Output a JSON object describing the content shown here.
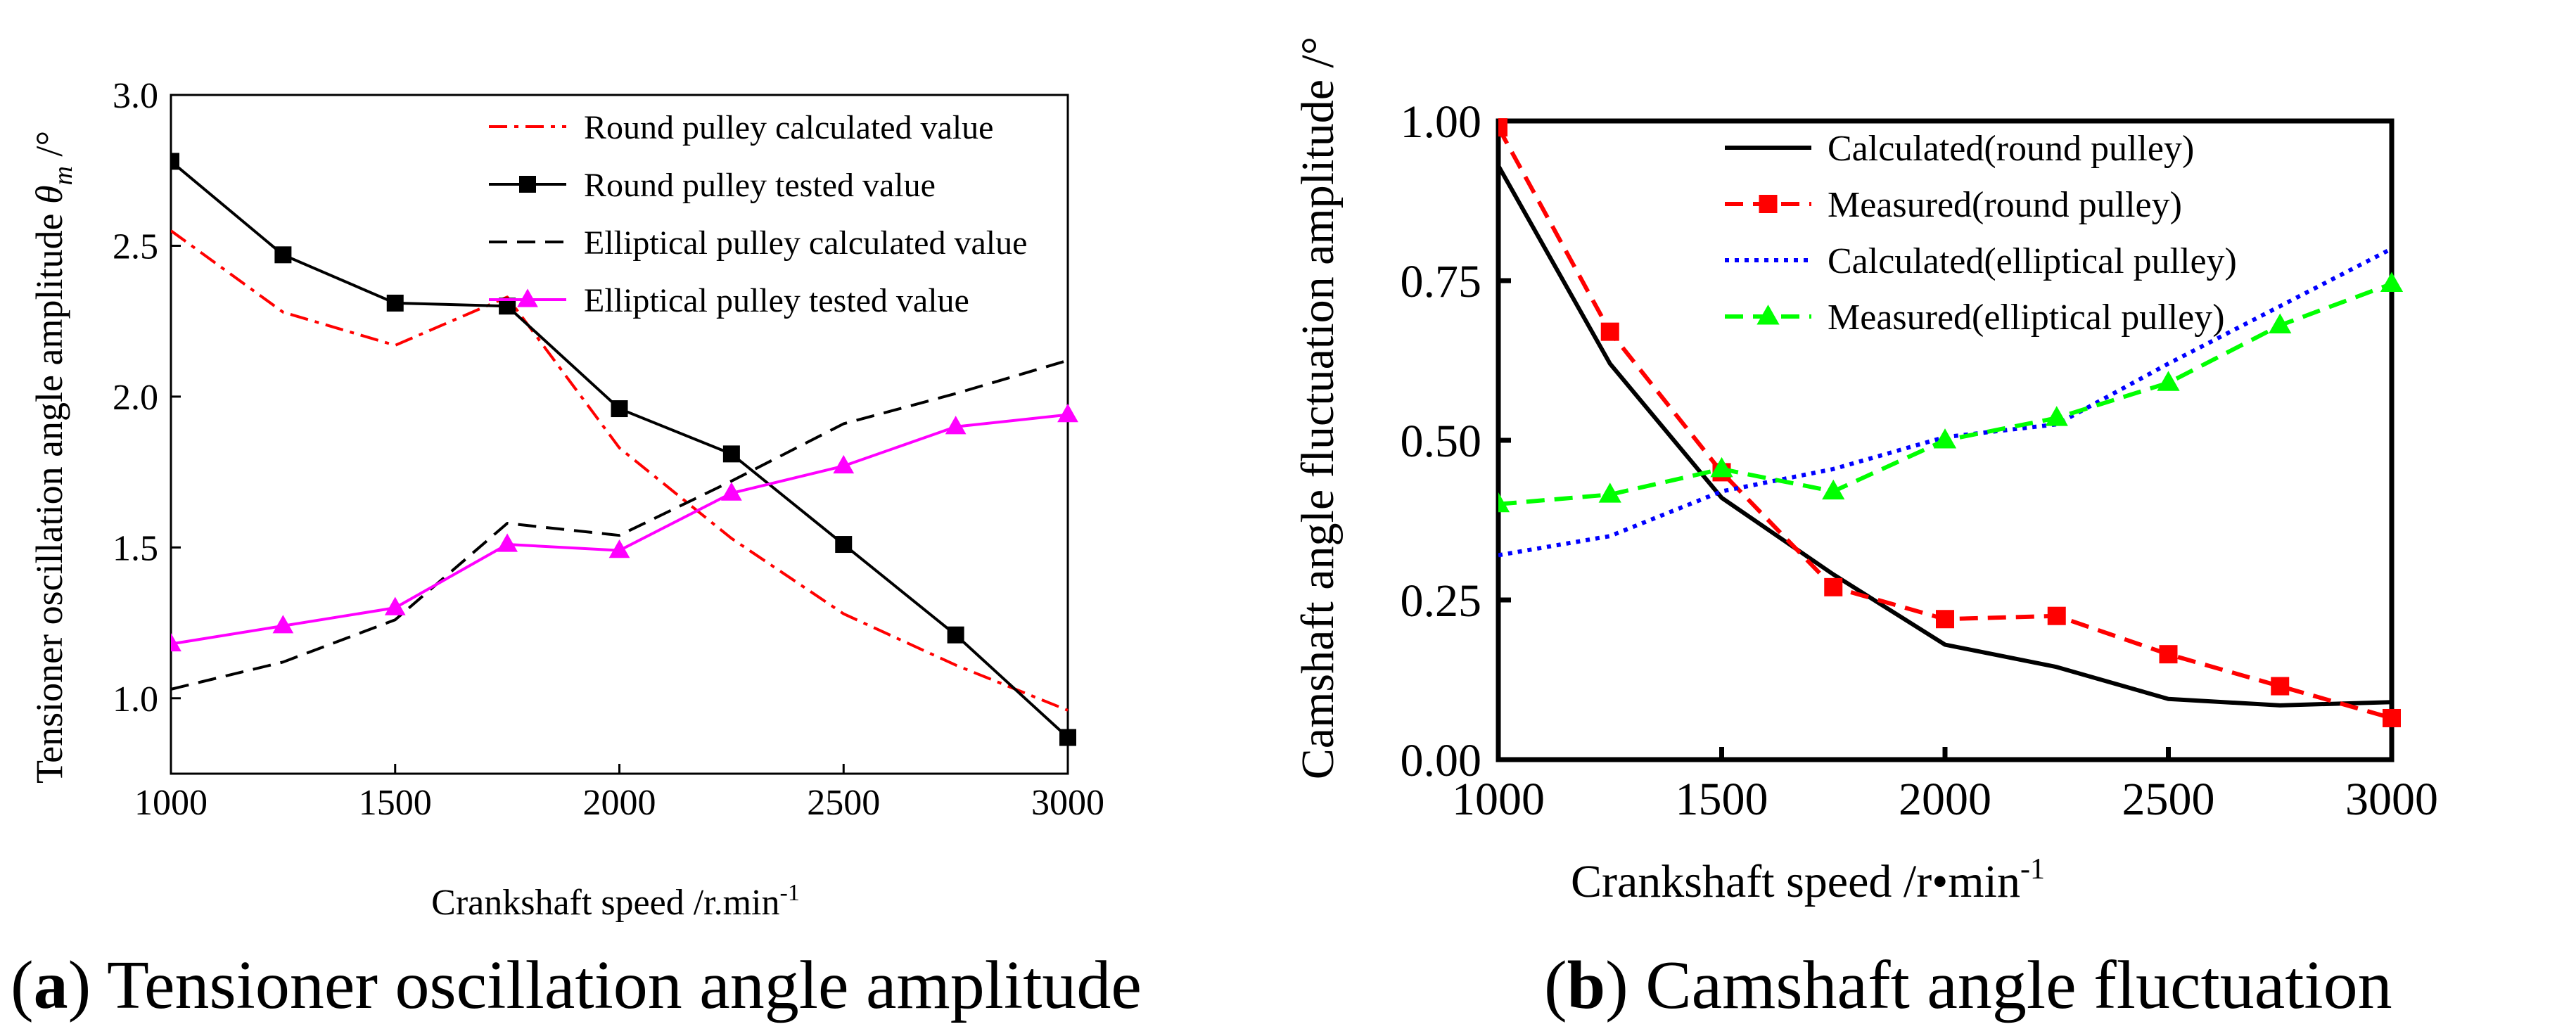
{
  "colors": {
    "red": "#ff0000",
    "black": "#000000",
    "magenta": "#ff00ff",
    "blue": "#0000ff",
    "green": "#00ff00"
  },
  "chart_data": [
    {
      "type": "line",
      "caption": {
        "letter": "a",
        "open": "(",
        "close": ")",
        "text": " Tensioner oscillation angle amplitude"
      },
      "xlabel": "Crankshaft speed /r.min",
      "xlabel_sup": "-1",
      "ylabel": "Tensioner oscillation angle amplitude",
      "ylabel_symbol": "θ",
      "ylabel_sub": "m",
      "ylabel_unit": "/°",
      "xlim": [
        1000,
        3000
      ],
      "ylim": [
        0.75,
        3.0
      ],
      "x_ticks": [
        1000,
        1500,
        2000,
        2500,
        3000
      ],
      "x_tick_labels": [
        "1000",
        "1500",
        "2000",
        "2500",
        "3000"
      ],
      "y_ticks": [
        1.0,
        1.5,
        2.0,
        2.5,
        3.0
      ],
      "y_tick_labels": [
        "1.0",
        "1.5",
        "2.0",
        "2.5",
        "3.0"
      ],
      "legend_position": "top-right",
      "series": [
        {
          "name": "Round pulley calculated value",
          "color": "#ff0000",
          "style": "dashdot",
          "marker": "none",
          "x": [
            1000,
            1250,
            1500,
            1750,
            2000,
            2250,
            2500,
            2750,
            3000
          ],
          "y": [
            2.55,
            2.28,
            2.17,
            2.33,
            1.83,
            1.53,
            1.28,
            1.11,
            0.96
          ]
        },
        {
          "name": "Round pulley tested value",
          "color": "#000000",
          "style": "solid",
          "marker": "square",
          "x": [
            1000,
            1250,
            1500,
            1750,
            2000,
            2250,
            2500,
            2750,
            3000
          ],
          "y": [
            2.78,
            2.47,
            2.31,
            2.3,
            1.96,
            1.81,
            1.51,
            1.21,
            0.87
          ]
        },
        {
          "name": "Elliptical pulley calculated value",
          "color": "#000000",
          "style": "dashed",
          "marker": "none",
          "x": [
            1000,
            1250,
            1500,
            1750,
            2000,
            2250,
            2500,
            2750,
            3000
          ],
          "y": [
            1.03,
            1.12,
            1.26,
            1.58,
            1.54,
            1.72,
            1.91,
            2.01,
            2.12
          ]
        },
        {
          "name": "Elliptical pulley tested value",
          "color": "#ff00ff",
          "style": "solid",
          "marker": "triangle",
          "x": [
            1000,
            1250,
            1500,
            1750,
            2000,
            2250,
            2500,
            2750,
            3000
          ],
          "y": [
            1.18,
            1.24,
            1.3,
            1.51,
            1.49,
            1.68,
            1.77,
            1.9,
            1.94
          ]
        }
      ]
    },
    {
      "type": "line",
      "caption": {
        "letter": "b",
        "open": "(",
        "close": ")",
        "text": " Camshaft angle fluctuation"
      },
      "xlabel": "Crankshaft speed /r•min",
      "xlabel_sup": "-1",
      "ylabel": "Camshaft angle fluctuation amplitude /°",
      "xlim": [
        1000,
        3000
      ],
      "ylim": [
        0,
        1.0
      ],
      "x_ticks": [
        1000,
        1500,
        2000,
        2500,
        3000
      ],
      "x_tick_labels": [
        "1000",
        "1500",
        "2000",
        "2500",
        "3000"
      ],
      "y_ticks": [
        0,
        0.25,
        0.5,
        0.75,
        1.0
      ],
      "y_tick_labels": [
        "0.00",
        "0.25",
        "0.50",
        "0.75",
        "1.00"
      ],
      "legend_position": "top-right",
      "series": [
        {
          "name": "Calculated(round pulley)",
          "color": "#000000",
          "style": "solid",
          "marker": "none",
          "x": [
            1000,
            1250,
            1500,
            1750,
            2000,
            2250,
            2500,
            2750,
            3000
          ],
          "y": [
            0.93,
            0.62,
            0.41,
            0.29,
            0.18,
            0.145,
            0.095,
            0.085,
            0.09
          ]
        },
        {
          "name": "Measured(round pulley)",
          "color": "#ff0000",
          "style": "dashed",
          "marker": "square",
          "x": [
            1000,
            1250,
            1500,
            1750,
            2000,
            2250,
            2500,
            2750,
            3000
          ],
          "y": [
            0.99,
            0.67,
            0.45,
            0.27,
            0.22,
            0.225,
            0.165,
            0.115,
            0.065
          ]
        },
        {
          "name": "Calculated(elliptical pulley)",
          "color": "#0000ff",
          "style": "dotted",
          "marker": "none",
          "x": [
            1000,
            1250,
            1500,
            1750,
            2000,
            2250,
            2500,
            2750,
            3000
          ],
          "y": [
            0.32,
            0.35,
            0.42,
            0.455,
            0.505,
            0.525,
            0.62,
            0.71,
            0.8
          ]
        },
        {
          "name": "Measured(elliptical pulley)",
          "color": "#00ff00",
          "style": "dashed",
          "marker": "triangle",
          "x": [
            1000,
            1250,
            1500,
            1750,
            2000,
            2250,
            2500,
            2750,
            3000
          ],
          "y": [
            0.4,
            0.415,
            0.455,
            0.42,
            0.5,
            0.535,
            0.59,
            0.68,
            0.745
          ]
        }
      ]
    }
  ]
}
